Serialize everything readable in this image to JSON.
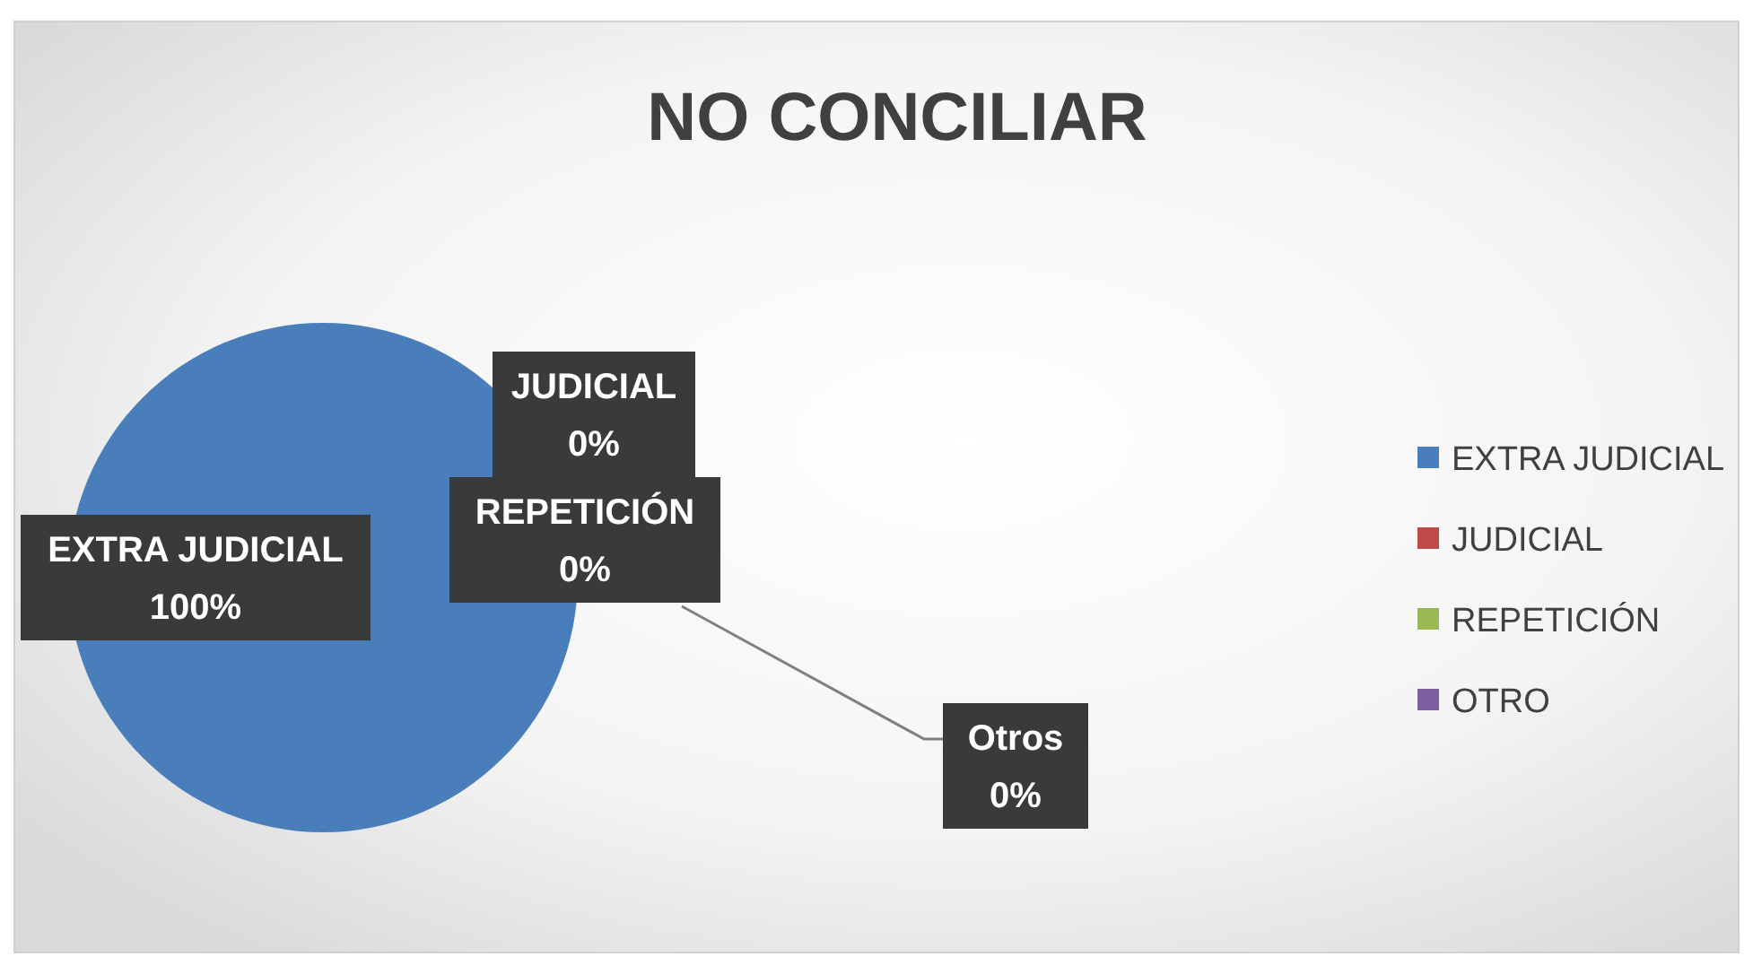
{
  "chart_data": {
    "type": "pie",
    "title": "NO CONCILIAR",
    "categories": [
      "EXTRA JUDICIAL",
      "JUDICIAL",
      "REPETICIÓN",
      "OTRO"
    ],
    "values": [
      100,
      0,
      0,
      0
    ],
    "colors": [
      "#4a7ebb",
      "#be4b48",
      "#98b954",
      "#7d60a0"
    ],
    "value_labels": [
      "EXTRA JUDICIAL\n100%",
      "JUDICIAL\n0%",
      "REPETICIÓN\n0%",
      "Otros\n0%"
    ],
    "legend": "right"
  }
}
